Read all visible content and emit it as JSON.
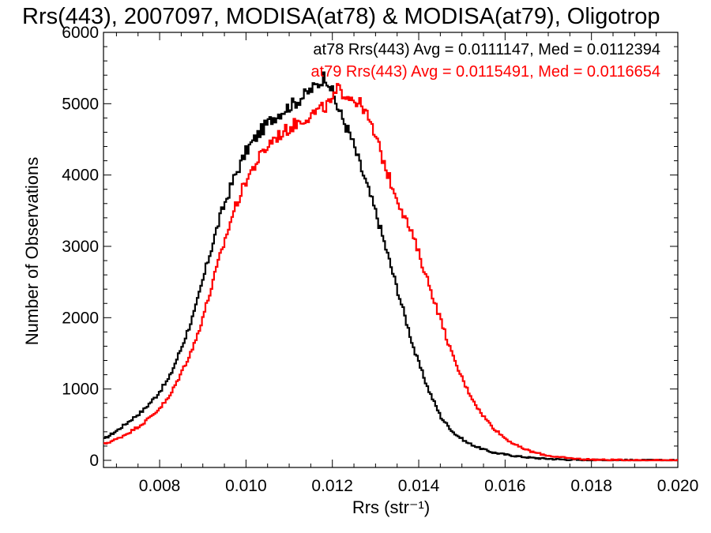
{
  "chart_data": {
    "type": "line",
    "title": "Rrs(443), 2007097, MODISA(at78) & MODISA(at79), Oligotrop",
    "xlabel": "Rrs (str⁻¹)",
    "ylabel": "Number of Observations",
    "xlim": [
      0.0067,
      0.02
    ],
    "ylim": [
      -100,
      6000
    ],
    "xticks": [
      "0.008",
      "0.010",
      "0.012",
      "0.014",
      "0.016",
      "0.018",
      "0.020"
    ],
    "xtick_values": [
      0.008,
      0.01,
      0.012,
      0.014,
      0.016,
      0.018,
      0.02
    ],
    "yticks": [
      "0",
      "1000",
      "2000",
      "3000",
      "4000",
      "5000",
      "6000"
    ],
    "ytick_values": [
      0,
      1000,
      2000,
      3000,
      4000,
      5000,
      6000
    ],
    "grid": false,
    "legend": "top-right",
    "series": [
      {
        "name": "at78 Rrs(443) Avg = 0.0111147, Med = 0.0112394",
        "color": "#000000",
        "x": [
          0.0067,
          0.007,
          0.0073,
          0.0076,
          0.0079,
          0.0082,
          0.0085,
          0.0088,
          0.0091,
          0.0094,
          0.0097,
          0.01,
          0.0103,
          0.0106,
          0.0109,
          0.0112,
          0.0115,
          0.0117,
          0.0118,
          0.0119,
          0.0121,
          0.0124,
          0.0127,
          0.013,
          0.0133,
          0.0136,
          0.0139,
          0.0142,
          0.0145,
          0.0148,
          0.0151,
          0.0154,
          0.0157,
          0.016,
          0.0163,
          0.0166,
          0.0169,
          0.0172,
          0.0175,
          0.018,
          0.019,
          0.02
        ],
        "y": [
          300,
          420,
          560,
          700,
          900,
          1150,
          1600,
          2100,
          2800,
          3450,
          3950,
          4350,
          4600,
          4800,
          4930,
          5050,
          5200,
          5300,
          5400,
          5300,
          4950,
          4550,
          4000,
          3450,
          2800,
          2150,
          1500,
          1000,
          600,
          380,
          250,
          170,
          110,
          80,
          55,
          35,
          25,
          15,
          8,
          4,
          1,
          0
        ]
      },
      {
        "name": "at79 Rrs(443) Avg = 0.0115491, Med = 0.0116654",
        "color": "#ff0000",
        "x": [
          0.0067,
          0.007,
          0.0073,
          0.0076,
          0.0079,
          0.0082,
          0.0085,
          0.0088,
          0.0091,
          0.0094,
          0.0097,
          0.01,
          0.0103,
          0.0106,
          0.0109,
          0.0112,
          0.0115,
          0.0118,
          0.012,
          0.0121,
          0.0124,
          0.0127,
          0.013,
          0.0133,
          0.0136,
          0.0139,
          0.0142,
          0.0145,
          0.0148,
          0.0151,
          0.0154,
          0.0157,
          0.016,
          0.0163,
          0.0166,
          0.0169,
          0.0172,
          0.0175,
          0.0178,
          0.0183,
          0.019,
          0.02
        ],
        "y": [
          230,
          300,
          400,
          520,
          680,
          880,
          1250,
          1650,
          2250,
          2900,
          3500,
          3950,
          4250,
          4500,
          4620,
          4750,
          4850,
          4950,
          5050,
          5200,
          5100,
          4950,
          4500,
          3950,
          3500,
          3050,
          2500,
          1950,
          1400,
          1000,
          680,
          460,
          300,
          190,
          120,
          75,
          45,
          28,
          15,
          6,
          2,
          0
        ]
      }
    ]
  }
}
